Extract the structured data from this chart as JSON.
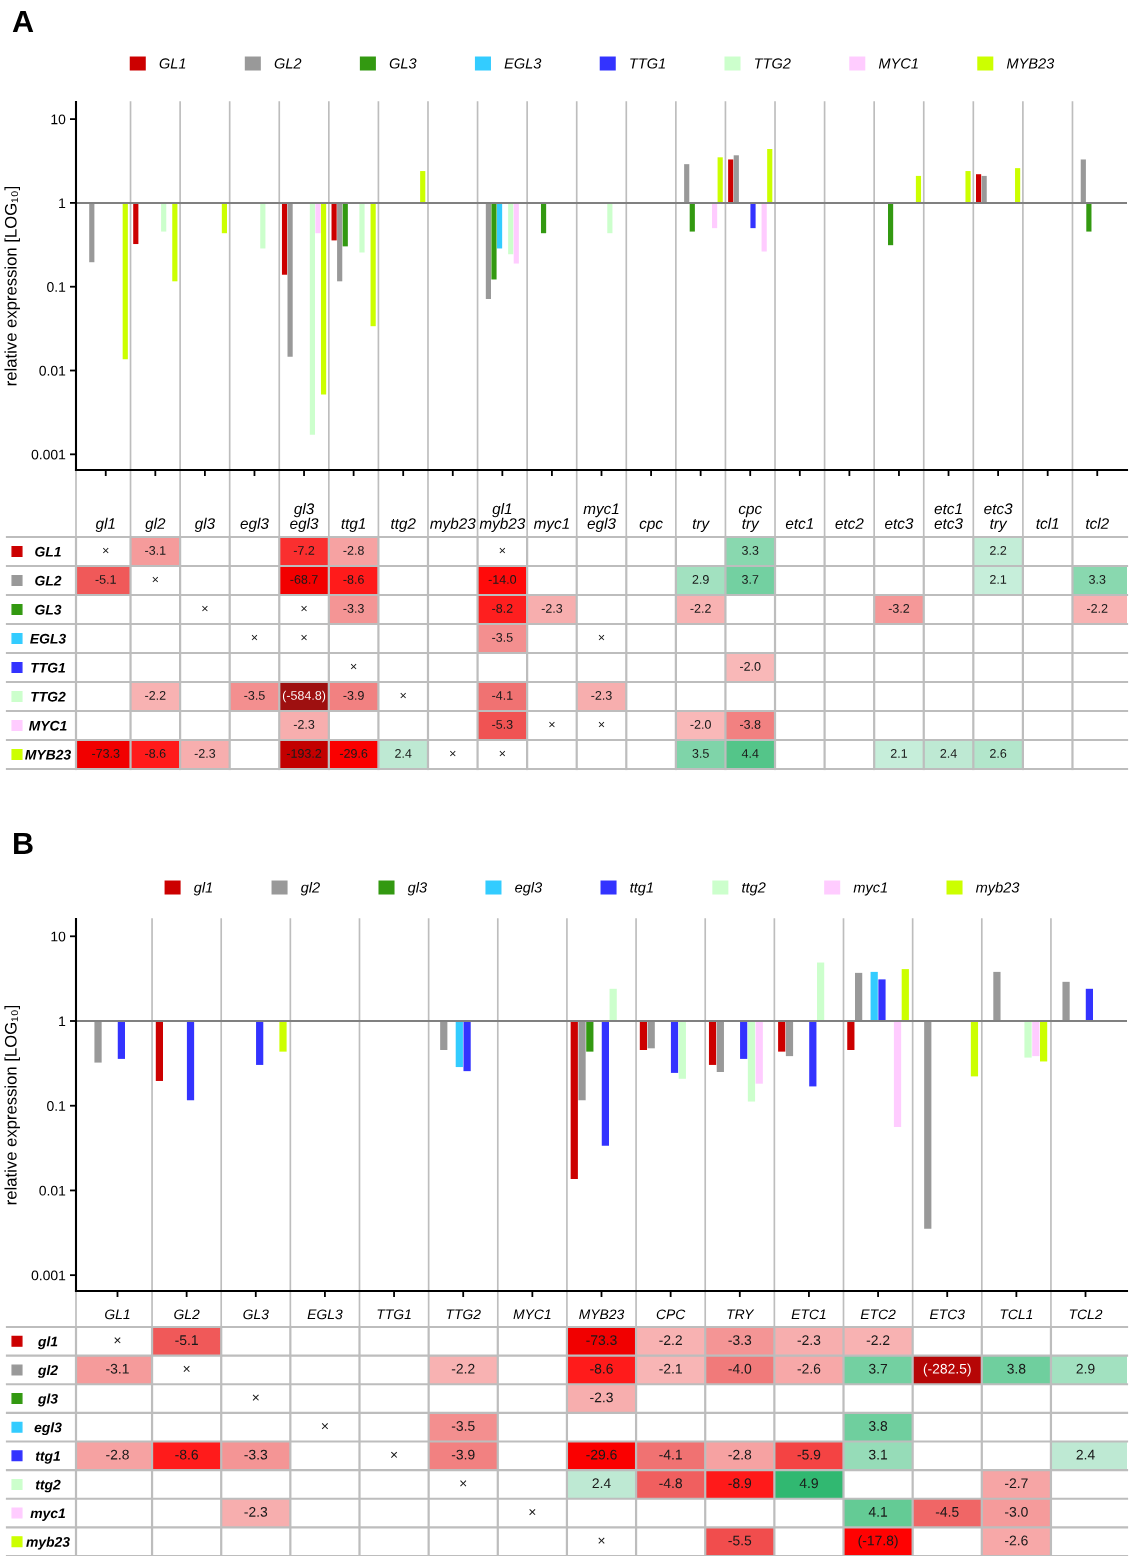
{
  "chart_data": [
    {
      "type": "bar",
      "title": "A",
      "ylabel": "relative expression [LOG₁₀]",
      "log": true,
      "ylim": [
        0.00065,
        16
      ],
      "yticks": [
        10,
        1,
        0.1,
        0.01,
        0.001
      ],
      "grid": "x",
      "legend": "top",
      "tick_labels": "y",
      "categories": [
        null,
        null,
        null,
        null,
        null,
        null,
        null,
        null,
        null,
        null,
        null,
        null,
        null,
        null,
        null,
        null,
        null,
        null,
        null,
        null,
        null
      ],
      "ref_lines": [
        {
          "axis": "y",
          "value": 1,
          "color": "#808080"
        }
      ],
      "series": [
        {
          "name": "GL1",
          "color": "#cc0000",
          "values": [
            null,
            -0.677,
            null,
            null,
            -0.861,
            -0.643,
            null,
            null,
            null,
            null,
            null,
            null,
            null,
            2.3,
            null,
            null,
            null,
            null,
            1.2,
            null,
            null
          ],
          "base": [
            null,
            1,
            null,
            null,
            1,
            1,
            null,
            null,
            null,
            null,
            null,
            null,
            null,
            1,
            null,
            null,
            null,
            null,
            1,
            null,
            null
          ]
        },
        {
          "name": "GL2",
          "color": "#999999",
          "values": [
            -0.804,
            null,
            null,
            null,
            -0.9854,
            -0.884,
            null,
            null,
            -0.9286,
            null,
            null,
            null,
            1.9,
            2.7,
            null,
            null,
            null,
            null,
            1.1,
            null,
            2.3
          ],
          "base": [
            1,
            null,
            null,
            null,
            1,
            1,
            null,
            null,
            1,
            null,
            null,
            null,
            1,
            1,
            null,
            null,
            null,
            null,
            1,
            null,
            1
          ]
        },
        {
          "name": "GL3",
          "color": "#339911",
          "values": [
            null,
            null,
            null,
            null,
            null,
            -0.697,
            null,
            null,
            -0.878,
            -0.565,
            null,
            null,
            -0.545,
            null,
            null,
            null,
            -0.687,
            null,
            null,
            null,
            -0.545
          ],
          "base": [
            null,
            null,
            null,
            null,
            null,
            1,
            null,
            null,
            1,
            1,
            null,
            null,
            1,
            null,
            null,
            null,
            1,
            null,
            null,
            null,
            1
          ]
        },
        {
          "name": "EGL3",
          "color": "#33ccff",
          "values": [
            null,
            null,
            null,
            null,
            null,
            null,
            null,
            null,
            -0.714,
            null,
            null,
            null,
            null,
            null,
            null,
            null,
            null,
            null,
            null,
            null,
            null
          ],
          "base": [
            null,
            null,
            null,
            null,
            null,
            null,
            null,
            null,
            1,
            null,
            null,
            null,
            null,
            null,
            null,
            null,
            null,
            null,
            null,
            null,
            null
          ]
        },
        {
          "name": "TTG1",
          "color": "#3333ff",
          "values": [
            null,
            null,
            null,
            null,
            null,
            null,
            null,
            null,
            null,
            null,
            null,
            null,
            null,
            -0.5,
            null,
            null,
            null,
            null,
            null,
            null,
            null
          ],
          "base": [
            null,
            null,
            null,
            null,
            null,
            null,
            null,
            null,
            null,
            null,
            null,
            null,
            null,
            1,
            null,
            null,
            null,
            null,
            null,
            null,
            null
          ]
        },
        {
          "name": "TTG2",
          "color": "#ccffcc",
          "values": [
            null,
            -0.545,
            null,
            -0.714,
            -0.99829,
            -0.744,
            null,
            null,
            -0.756,
            null,
            -0.565,
            null,
            null,
            null,
            null,
            null,
            null,
            null,
            null,
            null,
            null
          ],
          "base": [
            null,
            1,
            null,
            1,
            1,
            1,
            null,
            null,
            1,
            null,
            1,
            null,
            null,
            null,
            null,
            null,
            null,
            null,
            null,
            null,
            null
          ]
        },
        {
          "name": "MYC1",
          "color": "#ffccff",
          "values": [
            null,
            null,
            null,
            null,
            -0.565,
            null,
            null,
            null,
            -0.811,
            null,
            null,
            null,
            -0.5,
            -0.737,
            null,
            null,
            null,
            null,
            null,
            null,
            null
          ],
          "base": [
            null,
            null,
            null,
            null,
            1,
            null,
            null,
            null,
            1,
            null,
            null,
            null,
            1,
            1,
            null,
            null,
            null,
            null,
            null,
            null,
            null
          ]
        },
        {
          "name": "MYB23",
          "color": "#ccff00",
          "values": [
            -0.9864,
            -0.884,
            -0.565,
            null,
            -0.99482,
            -0.9662,
            1.4,
            null,
            null,
            null,
            null,
            null,
            2.5,
            3.4,
            null,
            null,
            1.1,
            1.4,
            1.6,
            null,
            null
          ],
          "base": [
            1,
            1,
            1,
            null,
            1,
            1,
            1,
            null,
            null,
            null,
            null,
            null,
            1,
            1,
            null,
            null,
            1,
            1,
            1,
            null,
            null
          ]
        }
      ]
    },
    {
      "type": "heatmap",
      "grid": true,
      "categories": [
        "gl1",
        "gl2",
        "gl3",
        "egl3",
        "gl3\negl3",
        "ttg1",
        "ttg2",
        "myb23",
        "gl1\nmyb23",
        "myc1",
        "myc1\negl3",
        "cpc",
        "try",
        "cpc\ntry",
        "etc1",
        "etc2",
        "etc3",
        "etc1\netc3",
        "etc3\ntry",
        "tcl1",
        "tcl2"
      ],
      "y_categories": [
        "GL1",
        "GL2",
        "GL3",
        "EGL3",
        "TTG1",
        "TTG2",
        "MYC1",
        "MYB23"
      ],
      "cells": [
        [
          null,
          -3.1,
          null,
          null,
          -7.2,
          -2.8,
          null,
          null,
          null,
          null,
          null,
          null,
          null,
          3.3,
          null,
          null,
          null,
          null,
          2.2,
          null,
          null
        ],
        [
          -5.1,
          null,
          null,
          null,
          -68.7,
          -8.6,
          null,
          null,
          -14.0,
          null,
          null,
          null,
          2.9,
          3.7,
          null,
          null,
          null,
          null,
          2.1,
          null,
          3.3
        ],
        [
          null,
          null,
          null,
          null,
          null,
          -3.3,
          null,
          null,
          -8.2,
          -2.3,
          null,
          null,
          -2.2,
          null,
          null,
          null,
          -3.2,
          null,
          null,
          null,
          -2.2
        ],
        [
          null,
          null,
          null,
          null,
          null,
          null,
          null,
          null,
          -3.5,
          null,
          null,
          null,
          null,
          null,
          null,
          null,
          null,
          null,
          null,
          null,
          null
        ],
        [
          null,
          null,
          null,
          null,
          null,
          null,
          null,
          null,
          null,
          null,
          null,
          null,
          null,
          -2.0,
          null,
          null,
          null,
          null,
          null,
          null,
          null
        ],
        [
          null,
          -2.2,
          null,
          -3.5,
          -584.8,
          -3.9,
          null,
          null,
          -4.1,
          null,
          -2.3,
          null,
          null,
          null,
          null,
          null,
          null,
          null,
          null,
          null,
          null
        ],
        [
          null,
          null,
          null,
          null,
          -2.3,
          null,
          null,
          null,
          -5.3,
          null,
          null,
          null,
          -2.0,
          -3.8,
          null,
          null,
          null,
          null,
          null,
          null,
          null
        ],
        [
          -73.3,
          -8.6,
          -2.3,
          null,
          -193.2,
          -29.6,
          2.4,
          null,
          null,
          null,
          null,
          null,
          3.5,
          4.4,
          null,
          null,
          2.1,
          2.4,
          2.6,
          null,
          null
        ]
      ],
      "cell_labels": [
        [
          "×",
          "-3.1",
          null,
          null,
          "-7.2",
          "-2.8",
          null,
          null,
          "×",
          null,
          null,
          null,
          null,
          "3.3",
          null,
          null,
          null,
          null,
          "2.2",
          null,
          null
        ],
        [
          "-5.1",
          "×",
          null,
          null,
          "-68.7",
          "-8.6",
          null,
          null,
          "-14.0",
          null,
          null,
          null,
          "2.9",
          "3.7",
          null,
          null,
          null,
          null,
          "2.1",
          null,
          "3.3"
        ],
        [
          null,
          null,
          "×",
          null,
          "×",
          "-3.3",
          null,
          null,
          "-8.2",
          "-2.3",
          null,
          null,
          "-2.2",
          null,
          null,
          null,
          "-3.2",
          null,
          null,
          null,
          "-2.2"
        ],
        [
          null,
          null,
          null,
          "×",
          "×",
          null,
          null,
          null,
          "-3.5",
          null,
          "×",
          null,
          null,
          null,
          null,
          null,
          null,
          null,
          null,
          null,
          null
        ],
        [
          null,
          null,
          null,
          null,
          null,
          "×",
          null,
          null,
          null,
          null,
          null,
          null,
          null,
          "-2.0",
          null,
          null,
          null,
          null,
          null,
          null,
          null
        ],
        [
          null,
          "-2.2",
          null,
          "-3.5",
          "(-584.8)",
          "-3.9",
          "×",
          null,
          "-4.1",
          null,
          "-2.3",
          null,
          null,
          null,
          null,
          null,
          null,
          null,
          null,
          null,
          null
        ],
        [
          null,
          null,
          null,
          null,
          "-2.3",
          null,
          null,
          null,
          "-5.3",
          "×",
          "×",
          null,
          "-2.0",
          "-3.8",
          null,
          null,
          null,
          null,
          null,
          null,
          null
        ],
        [
          "-73.3",
          "-8.6",
          "-2.3",
          null,
          "-193.2",
          "-29.6",
          "2.4",
          "×",
          "×",
          null,
          null,
          null,
          "3.5",
          "4.4",
          null,
          null,
          "2.1",
          "2.4",
          "2.6",
          null,
          null
        ]
      ]
    },
    {
      "type": "bar",
      "title": "B",
      "ylabel": "relative expression [LOG₁₀]",
      "log": true,
      "ylim": [
        0.00065,
        16
      ],
      "yticks": [
        10,
        1,
        0.1,
        0.01,
        0.001
      ],
      "grid": "x",
      "legend": "top",
      "tick_labels": "y",
      "categories": [
        null,
        null,
        null,
        null,
        null,
        null,
        null,
        null,
        null,
        null,
        null,
        null,
        null,
        null,
        null
      ],
      "ref_lines": [
        {
          "axis": "y",
          "value": 1,
          "color": "#808080"
        }
      ],
      "series": [
        {
          "name": "gl1",
          "color": "#cc0000",
          "values": [
            null,
            -0.804,
            null,
            null,
            null,
            null,
            null,
            -0.9864,
            -0.545,
            -0.697,
            -0.565,
            -0.545,
            null,
            null,
            null
          ],
          "base": [
            null,
            1,
            null,
            null,
            null,
            null,
            null,
            1,
            1,
            1,
            1,
            1,
            null,
            null,
            null
          ]
        },
        {
          "name": "gl2",
          "color": "#999999",
          "values": [
            -0.677,
            null,
            null,
            null,
            null,
            -0.545,
            null,
            -0.884,
            -0.524,
            -0.75,
            -0.615,
            2.7,
            -0.99646,
            2.8,
            1.9
          ],
          "base": [
            1,
            null,
            null,
            null,
            null,
            1,
            null,
            1,
            1,
            1,
            1,
            1,
            1,
            1,
            1
          ]
        },
        {
          "name": "gl3",
          "color": "#339911",
          "values": [
            null,
            null,
            null,
            null,
            null,
            null,
            null,
            -0.565,
            null,
            null,
            null,
            null,
            null,
            null,
            null
          ],
          "base": [
            null,
            null,
            null,
            null,
            null,
            null,
            null,
            1,
            null,
            null,
            null,
            null,
            null,
            null,
            null
          ]
        },
        {
          "name": "egl3",
          "color": "#33ccff",
          "values": [
            null,
            null,
            null,
            null,
            null,
            -0.714,
            null,
            null,
            null,
            null,
            null,
            2.8,
            null,
            null,
            null
          ],
          "base": [
            null,
            null,
            null,
            null,
            null,
            1,
            null,
            null,
            null,
            null,
            null,
            1,
            null,
            null,
            null
          ]
        },
        {
          "name": "ttg1",
          "color": "#3333ff",
          "values": [
            -0.643,
            -0.884,
            -0.697,
            null,
            null,
            -0.744,
            null,
            -0.9662,
            -0.756,
            -0.643,
            -0.831,
            2.1,
            null,
            null,
            1.4
          ],
          "base": [
            1,
            1,
            1,
            null,
            null,
            1,
            null,
            1,
            1,
            1,
            1,
            1,
            null,
            null,
            1
          ]
        },
        {
          "name": "ttg2",
          "color": "#ccffcc",
          "values": [
            null,
            null,
            null,
            null,
            null,
            null,
            null,
            1.4,
            -0.792,
            -0.888,
            3.9,
            null,
            null,
            -0.63,
            null
          ],
          "base": [
            null,
            null,
            null,
            null,
            null,
            null,
            null,
            1,
            1,
            1,
            1,
            null,
            null,
            1,
            null
          ]
        },
        {
          "name": "myc1",
          "color": "#ffccff",
          "values": [
            null,
            null,
            null,
            null,
            null,
            null,
            null,
            null,
            null,
            -0.818,
            null,
            -0.9438,
            null,
            -0.615,
            null
          ],
          "base": [
            null,
            null,
            null,
            null,
            null,
            null,
            null,
            null,
            null,
            1,
            null,
            1,
            null,
            1,
            null
          ]
        },
        {
          "name": "myb23",
          "color": "#ccff00",
          "values": [
            null,
            null,
            -0.565,
            null,
            null,
            null,
            null,
            null,
            null,
            null,
            null,
            3.1,
            -0.778,
            -0.667,
            null
          ],
          "base": [
            null,
            null,
            1,
            null,
            null,
            null,
            null,
            null,
            null,
            null,
            null,
            1,
            1,
            1,
            null
          ]
        }
      ]
    },
    {
      "type": "heatmap",
      "grid": true,
      "categories": [
        "GL1",
        "GL2",
        "GL3",
        "EGL3",
        "TTG1",
        "TTG2",
        "MYC1",
        "MYB23",
        "CPC",
        "TRY",
        "ETC1",
        "ETC2",
        "ETC3",
        "TCL1",
        "TCL2"
      ],
      "y_categories": [
        "gl1",
        "gl2",
        "gl3",
        "egl3",
        "ttg1",
        "ttg2",
        "myc1",
        "myb23"
      ],
      "cells": [
        [
          null,
          -5.1,
          null,
          null,
          null,
          null,
          null,
          -73.3,
          -2.2,
          -3.3,
          -2.3,
          -2.2,
          null,
          null,
          null
        ],
        [
          -3.1,
          null,
          null,
          null,
          null,
          -2.2,
          null,
          -8.6,
          -2.1,
          -4.0,
          -2.6,
          3.7,
          -282.5,
          3.8,
          2.9
        ],
        [
          null,
          null,
          null,
          null,
          null,
          null,
          null,
          -2.3,
          null,
          null,
          null,
          null,
          null,
          null,
          null
        ],
        [
          null,
          null,
          null,
          null,
          null,
          -3.5,
          null,
          null,
          null,
          null,
          null,
          3.8,
          null,
          null,
          null
        ],
        [
          -2.8,
          -8.6,
          -3.3,
          null,
          null,
          -3.9,
          null,
          -29.6,
          -4.1,
          -2.8,
          -5.9,
          3.1,
          null,
          null,
          2.4
        ],
        [
          null,
          null,
          null,
          null,
          null,
          null,
          null,
          2.4,
          -4.8,
          -8.9,
          4.9,
          null,
          null,
          -2.7,
          null
        ],
        [
          null,
          null,
          -2.3,
          null,
          null,
          null,
          null,
          null,
          null,
          null,
          null,
          4.1,
          -4.5,
          -3.0,
          null
        ],
        [
          null,
          null,
          null,
          null,
          null,
          null,
          null,
          null,
          null,
          -5.5,
          null,
          -17.8,
          null,
          -2.6,
          null
        ]
      ],
      "cell_labels": [
        [
          "×",
          "-5.1",
          null,
          null,
          null,
          null,
          null,
          "-73.3",
          "-2.2",
          "-3.3",
          "-2.3",
          "-2.2",
          null,
          null,
          null
        ],
        [
          "-3.1",
          "×",
          null,
          null,
          null,
          "-2.2",
          null,
          "-8.6",
          "-2.1",
          "-4.0",
          "-2.6",
          "3.7",
          "(-282.5)",
          "3.8",
          "2.9"
        ],
        [
          null,
          null,
          "×",
          null,
          null,
          null,
          null,
          "-2.3",
          null,
          null,
          null,
          null,
          null,
          null,
          null
        ],
        [
          null,
          null,
          null,
          "×",
          null,
          "-3.5",
          null,
          null,
          null,
          null,
          null,
          "3.8",
          null,
          null,
          null
        ],
        [
          "-2.8",
          "-8.6",
          "-3.3",
          null,
          "×",
          "-3.9",
          null,
          "-29.6",
          "-4.1",
          "-2.8",
          "-5.9",
          "3.1",
          null,
          null,
          "2.4"
        ],
        [
          null,
          null,
          null,
          null,
          null,
          "×",
          null,
          "2.4",
          "-4.8",
          "-8.9",
          "4.9",
          null,
          null,
          "-2.7",
          null
        ],
        [
          null,
          null,
          "-2.3",
          null,
          null,
          null,
          "×",
          null,
          null,
          null,
          null,
          "4.1",
          "-4.5",
          "-3.0",
          null
        ],
        [
          null,
          null,
          null,
          null,
          null,
          null,
          null,
          "×",
          null,
          "-5.5",
          null,
          "(-17.8)",
          null,
          "-2.6",
          null
        ]
      ]
    }
  ]
}
